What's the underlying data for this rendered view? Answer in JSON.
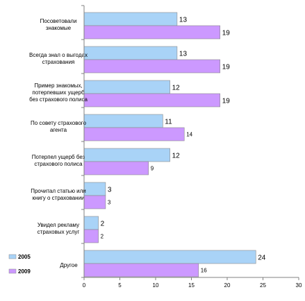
{
  "chart_data": {
    "type": "bar",
    "orientation": "horizontal",
    "categories": [
      [
        "Посоветовали",
        "знакомые"
      ],
      [
        "Всегда знал о выгодах",
        "страхования"
      ],
      [
        "Пример знакомых,",
        "потерпевших ущерб",
        "без страхового полиса"
      ],
      [
        "По совету страхового",
        "агента"
      ],
      [
        "Потерпел ущерб без",
        "страхового полиса"
      ],
      [
        "Прочитал статью или",
        "книгу о страховании"
      ],
      [
        "Увидел рекламу",
        "страховых услуг"
      ],
      [
        "Другое"
      ]
    ],
    "series": [
      {
        "name": "2005",
        "values": [
          13,
          13,
          12,
          11,
          12,
          3,
          2,
          24
        ],
        "color": "#a9d3f7"
      },
      {
        "name": "2009",
        "values": [
          19,
          19,
          19,
          14,
          9,
          3,
          2,
          16
        ],
        "color": "#cc99ff"
      }
    ],
    "value_label_sizes": {
      "2005": "large",
      "2009": [
        "large",
        "large",
        "large",
        "small",
        "small",
        "small",
        "small",
        "small"
      ]
    },
    "xlim": [
      0,
      30
    ],
    "xticks": [
      0,
      5,
      10,
      15,
      20,
      25,
      30
    ],
    "grid": false,
    "legend_position": "bottom-left",
    "title": "",
    "xlabel": "",
    "ylabel": ""
  }
}
